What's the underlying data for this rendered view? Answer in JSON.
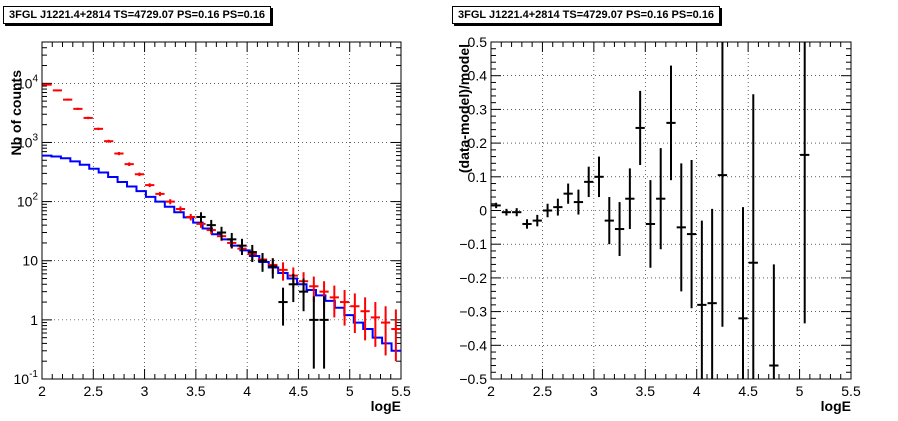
{
  "chart_data": [
    {
      "type": "step-histogram",
      "title": "3FGL J1221.4+2814 TS=4729.07 PS=0.16 PS=0.16",
      "xlabel": "logE",
      "ylabel": "Nb of counts",
      "xlim": [
        2,
        5.5
      ],
      "ylim": [
        0.1,
        50000
      ],
      "y_scale": "log",
      "grid": true,
      "x_ticks": [
        "2",
        "2.5",
        "3",
        "3.5",
        "4",
        "4.5",
        "5",
        "5.5"
      ],
      "y_ticks": [
        {
          "v": 0.1,
          "base": "10",
          "exp": "-1"
        },
        {
          "v": 1,
          "base": "1",
          "exp": ""
        },
        {
          "v": 10,
          "base": "10",
          "exp": ""
        },
        {
          "v": 100,
          "base": "10",
          "exp": "2"
        },
        {
          "v": 1000,
          "base": "10",
          "exp": "3"
        },
        {
          "v": 10000,
          "base": "10",
          "exp": "4"
        }
      ],
      "bin_width": 0.1,
      "series": [
        {
          "color": "#ff0000",
          "kind": "errorbars",
          "x": [
            2.05,
            2.15,
            2.25,
            2.35,
            2.45,
            2.55,
            2.65,
            2.75,
            2.85,
            2.95,
            3.05,
            3.15,
            3.25,
            3.35,
            3.45,
            3.55,
            3.65,
            3.75,
            3.85,
            3.95,
            4.05,
            4.15,
            4.25,
            4.35,
            4.45,
            4.55,
            4.65,
            4.75,
            4.85,
            4.95,
            5.05,
            5.15,
            5.25,
            5.35,
            5.45
          ],
          "y": [
            9500,
            7600,
            5300,
            3700,
            2600,
            1700,
            1050,
            650,
            430,
            290,
            190,
            135,
            100,
            75,
            55,
            42,
            33,
            26,
            20,
            16,
            13,
            10.5,
            8.5,
            7,
            5.6,
            4.5,
            3.7,
            3,
            2.4,
            2,
            1.7,
            1.4,
            1.1,
            0.9,
            0.7
          ],
          "lo": [
            9200,
            7330,
            5100,
            3540,
            2480,
            1620,
            990,
            610,
            400,
            270,
            176,
            124,
            90,
            67,
            48,
            36,
            28,
            21.5,
            16,
            12.5,
            9.8,
            7.6,
            6,
            4.6,
            3.5,
            2.6,
            2,
            1.5,
            1.1,
            0.8,
            0.6,
            0.45,
            0.35,
            0.25,
            0.2
          ],
          "hi": [
            9800,
            7870,
            5500,
            3860,
            2720,
            1780,
            1110,
            690,
            460,
            310,
            204,
            146,
            110,
            83,
            62,
            48,
            38,
            31,
            24,
            19.5,
            16,
            13.5,
            11,
            9.4,
            7.7,
            6.4,
            5.4,
            4.5,
            3.8,
            3.2,
            2.8,
            2.4,
            2,
            1.7,
            1.5
          ]
        },
        {
          "color": "#0000ff",
          "kind": "step",
          "y": [
            600,
            580,
            540,
            480,
            420,
            360,
            310,
            260,
            215,
            180,
            150,
            120,
            100,
            82,
            66,
            54,
            44,
            35,
            28,
            23,
            18,
            15,
            12,
            9.5,
            7.7,
            6.2,
            5,
            4,
            3.2,
            2.6,
            2.1,
            1.6,
            1.2,
            0.9,
            0.7,
            0.5,
            0.4,
            0.3
          ]
        },
        {
          "color": "#000000",
          "kind": "errorbars",
          "x": [
            3.55,
            3.65,
            3.75,
            3.85,
            3.95,
            4.05,
            4.15,
            4.25,
            4.35,
            4.45,
            4.55,
            4.65,
            4.75
          ],
          "y": [
            55,
            40,
            30,
            23,
            18,
            14,
            10,
            8,
            2,
            4,
            3,
            1,
            1
          ],
          "lo": [
            44,
            31,
            22.5,
            16.5,
            12.5,
            9.5,
            6.5,
            5,
            0.8,
            2,
            1.4,
            0.15,
            0.15
          ],
          "hi": [
            66,
            49,
            37.5,
            29.5,
            23.5,
            18.5,
            13.5,
            11,
            3.5,
            6,
            5,
            2.5,
            2.5
          ]
        }
      ]
    },
    {
      "type": "scatter-errorbars",
      "title": "3FGL J1221.4+2814 TS=4729.07 PS=0.16 PS=0.16",
      "xlabel": "logE",
      "ylabel": "(data-model)/model",
      "xlim": [
        2,
        5.5
      ],
      "ylim": [
        -0.5,
        0.5
      ],
      "grid": true,
      "x_ticks": [
        "2",
        "2.5",
        "3",
        "3.5",
        "4",
        "4.5",
        "5",
        "5.5"
      ],
      "y_ticks": [
        "-0.5",
        "-0.4",
        "-0.3",
        "-0.2",
        "-0.1",
        "0",
        "0.1",
        "0.2",
        "0.3",
        "0.4",
        "0.5"
      ],
      "bin_width": 0.1,
      "points": [
        {
          "x": 2.05,
          "y": 0.015,
          "err": 0.008
        },
        {
          "x": 2.15,
          "y": -0.005,
          "err": 0.01
        },
        {
          "x": 2.25,
          "y": -0.005,
          "err": 0.012
        },
        {
          "x": 2.35,
          "y": -0.04,
          "err": 0.014
        },
        {
          "x": 2.45,
          "y": -0.03,
          "err": 0.017
        },
        {
          "x": 2.55,
          "y": 0.0,
          "err": 0.02
        },
        {
          "x": 2.65,
          "y": 0.01,
          "err": 0.025
        },
        {
          "x": 2.75,
          "y": 0.05,
          "err": 0.03
        },
        {
          "x": 2.85,
          "y": 0.025,
          "err": 0.037
        },
        {
          "x": 2.95,
          "y": 0.085,
          "err": 0.045
        },
        {
          "x": 3.05,
          "y": 0.1,
          "err": 0.06
        },
        {
          "x": 3.15,
          "y": -0.03,
          "err": 0.07
        },
        {
          "x": 3.25,
          "y": -0.055,
          "err": 0.08
        },
        {
          "x": 3.35,
          "y": 0.035,
          "err": 0.09
        },
        {
          "x": 3.45,
          "y": 0.245,
          "err": 0.11
        },
        {
          "x": 3.55,
          "y": -0.04,
          "err": 0.13
        },
        {
          "x": 3.65,
          "y": 0.035,
          "err": 0.15
        },
        {
          "x": 3.75,
          "y": 0.26,
          "err": 0.17
        },
        {
          "x": 3.85,
          "y": -0.05,
          "err": 0.19
        },
        {
          "x": 3.95,
          "y": -0.07,
          "err": 0.22
        },
        {
          "x": 4.05,
          "y": -0.28,
          "err": 0.25
        },
        {
          "x": 4.15,
          "y": -0.275,
          "err": 0.28
        },
        {
          "x": 4.25,
          "y": 0.105,
          "err": 0.45
        },
        {
          "x": 4.45,
          "y": -0.32,
          "err": 0.33
        },
        {
          "x": 4.55,
          "y": -0.155,
          "err": 0.5
        },
        {
          "x": 4.75,
          "y": -0.46,
          "err": 0.3
        },
        {
          "x": 5.05,
          "y": 0.165,
          "err": 0.5
        }
      ]
    }
  ]
}
